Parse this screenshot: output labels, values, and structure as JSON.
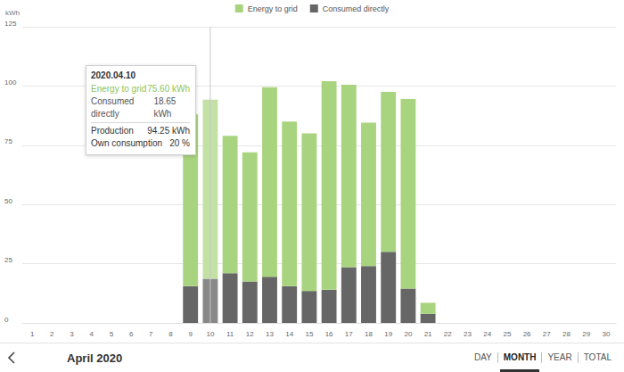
{
  "chart_data": {
    "type": "bar",
    "stacked": true,
    "grid": true,
    "legend": "top",
    "y_label": "kWh",
    "categories": [
      "1",
      "2",
      "3",
      "4",
      "5",
      "6",
      "7",
      "8",
      "9",
      "10",
      "11",
      "12",
      "13",
      "14",
      "15",
      "16",
      "17",
      "18",
      "19",
      "20",
      "21",
      "22",
      "23",
      "24",
      "25",
      "26",
      "27",
      "28",
      "29",
      "30"
    ],
    "series": [
      {
        "name": "Consumed directly",
        "color": "#666666",
        "values": [
          null,
          null,
          null,
          null,
          null,
          null,
          null,
          null,
          15.5,
          18.65,
          21,
          17.5,
          19.5,
          15.5,
          13.5,
          14,
          23.5,
          24,
          30,
          14.5,
          3.8,
          null,
          null,
          null,
          null,
          null,
          null,
          null,
          null,
          null
        ]
      },
      {
        "name": "Energy to grid",
        "color": "#a9d47f",
        "values": [
          null,
          null,
          null,
          null,
          null,
          null,
          null,
          null,
          72.5,
          75.6,
          58,
          54.5,
          80,
          69.5,
          66.5,
          88,
          77,
          60.5,
          67.5,
          80,
          4.7,
          null,
          null,
          null,
          null,
          null,
          null,
          null,
          null,
          null
        ]
      }
    ],
    "ylim": [
      0,
      125
    ],
    "yticks": [
      0,
      25,
      50,
      75,
      100,
      125
    ],
    "tooltip": {
      "title": "2020.04.10",
      "rows": [
        {
          "label": "Energy to grid",
          "value": "75.60 kWh",
          "series": "Energy to grid"
        },
        {
          "label": "Consumed directly",
          "value": "18.65 kWh",
          "series": "Consumed directly"
        },
        {
          "label": "Production",
          "value": "94.25 kWh"
        },
        {
          "label": "Own consumption",
          "value": "20 %"
        }
      ]
    }
  },
  "navigation": {
    "period": "April 2020",
    "views": [
      "DAY",
      "MONTH",
      "YEAR",
      "TOTAL"
    ],
    "selected": "MONTH"
  }
}
